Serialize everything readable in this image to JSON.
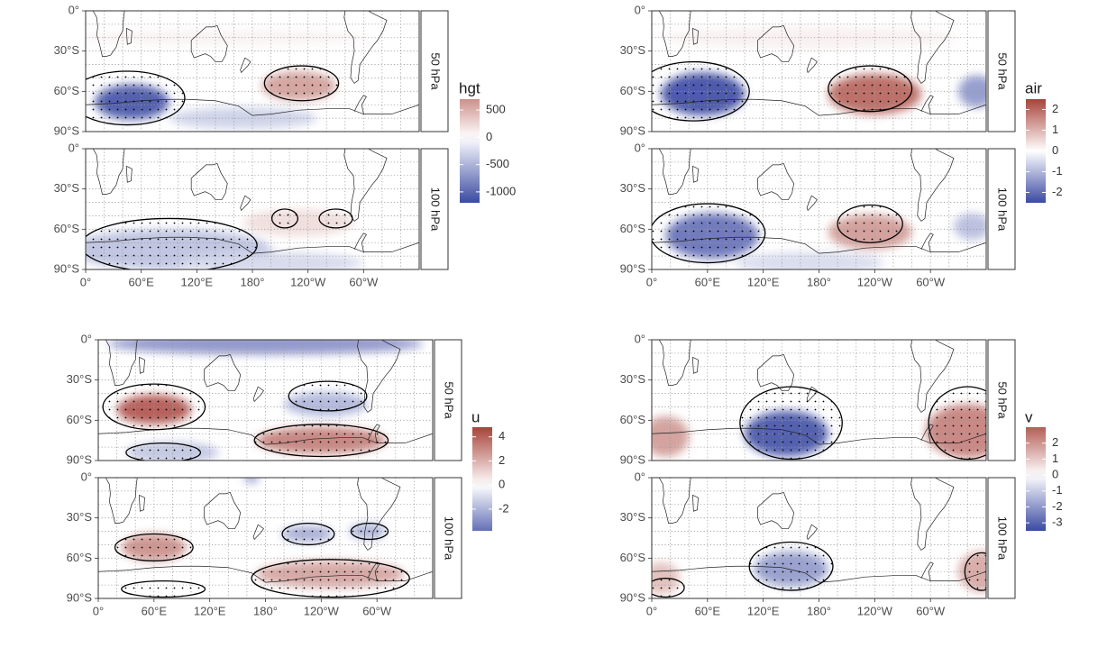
{
  "colors": {
    "negative": "#3b4aa3",
    "neutral": "#ffffff",
    "positive": "#a8433a",
    "contour": "#000000",
    "axis_text": "#4d4d4d",
    "strip_border": "#333333",
    "grid": "#9a9a9a"
  },
  "chart_data": [
    {
      "type": "heatmap",
      "variable": "hgt",
      "legend_title": "hgt",
      "legend_ticks": [
        500,
        0,
        -500,
        -1000
      ],
      "legend_tick_labels": [
        "500",
        "0",
        "-500",
        "-1000"
      ],
      "legend_range": [
        -1200,
        700
      ],
      "x_tick_labels": [
        "0°",
        "60°E",
        "120°E",
        "180°",
        "120°W",
        "60°W"
      ],
      "y_tick_labels": [
        "0°",
        "30°S",
        "60°S",
        "90°S"
      ],
      "panels": [
        {
          "level": "50 hPa",
          "anomalies": [
            {
              "lon": 50,
              "lat": -68,
              "rlon": 40,
              "rlat": 13,
              "value": -1100
            },
            {
              "lon": 230,
              "lat": -56,
              "rlon": 40,
              "rlat": 11,
              "value": 600
            },
            {
              "lon": 170,
              "lat": -80,
              "rlon": 80,
              "rlat": 8,
              "value": -300
            },
            {
              "lon": 150,
              "lat": -20,
              "rlon": 160,
              "rlat": 6,
              "value": 80
            }
          ],
          "significant_regions": [
            {
              "lon": 45,
              "lat": -65,
              "rlon": 62,
              "rlat": 20
            },
            {
              "lon": 233,
              "lat": -54,
              "rlon": 40,
              "rlat": 13
            }
          ]
        },
        {
          "level": "100 hPa",
          "anomalies": [
            {
              "lon": 90,
              "lat": -75,
              "rlon": 110,
              "rlat": 15,
              "value": -400
            },
            {
              "lon": 230,
              "lat": -55,
              "rlon": 60,
              "rlat": 10,
              "value": 220
            },
            {
              "lon": 200,
              "lat": -85,
              "rlon": 100,
              "rlat": 8,
              "value": -250
            }
          ],
          "significant_regions": [
            {
              "lon": 90,
              "lat": -72,
              "rlon": 95,
              "rlat": 20
            },
            {
              "lon": 215,
              "lat": -52,
              "rlon": 14,
              "rlat": 7
            },
            {
              "lon": 270,
              "lat": -52,
              "rlon": 18,
              "rlat": 7
            }
          ]
        }
      ]
    },
    {
      "type": "heatmap",
      "variable": "air",
      "legend_title": "air",
      "legend_ticks": [
        2,
        1,
        0,
        -1,
        -2
      ],
      "legend_tick_labels": [
        "2",
        "1",
        "0",
        "-1",
        "-2"
      ],
      "legend_range": [
        -2.5,
        2.5
      ],
      "x_tick_labels": [
        "0°",
        "60°E",
        "120°E",
        "180°",
        "120°W",
        "60°W"
      ],
      "y_tick_labels": [
        "0°",
        "30°S",
        "60°S",
        "90°S"
      ],
      "panels": [
        {
          "level": "50 hPa",
          "anomalies": [
            {
              "lon": 55,
              "lat": -62,
              "rlon": 45,
              "rlat": 16,
              "value": -2.4
            },
            {
              "lon": 240,
              "lat": -62,
              "rlon": 50,
              "rlat": 15,
              "value": 2.0
            },
            {
              "lon": 350,
              "lat": -60,
              "rlon": 20,
              "rlat": 12,
              "value": -1.4
            },
            {
              "lon": 170,
              "lat": -20,
              "rlon": 160,
              "rlat": 8,
              "value": 0.2
            }
          ],
          "significant_regions": [
            {
              "lon": 45,
              "lat": -60,
              "rlon": 60,
              "rlat": 22
            },
            {
              "lon": 235,
              "lat": -58,
              "rlon": 45,
              "rlat": 17
            }
          ]
        },
        {
          "level": "100 hPa",
          "anomalies": [
            {
              "lon": 65,
              "lat": -65,
              "rlon": 50,
              "rlat": 17,
              "value": -1.9
            },
            {
              "lon": 235,
              "lat": -62,
              "rlon": 45,
              "rlat": 13,
              "value": 1.3
            },
            {
              "lon": 170,
              "lat": -85,
              "rlon": 80,
              "rlat": 8,
              "value": -0.5
            },
            {
              "lon": 345,
              "lat": -58,
              "rlon": 20,
              "rlat": 10,
              "value": -0.9
            }
          ],
          "significant_regions": [
            {
              "lon": 60,
              "lat": -63,
              "rlon": 62,
              "rlat": 22
            },
            {
              "lon": 235,
              "lat": -56,
              "rlon": 35,
              "rlat": 14
            }
          ]
        }
      ]
    },
    {
      "type": "heatmap",
      "variable": "u",
      "legend_title": "u",
      "legend_ticks": [
        4,
        2,
        0,
        -2
      ],
      "legend_tick_labels": [
        "4",
        "2",
        "0",
        "-2"
      ],
      "legend_range": [
        -3.8,
        4.8
      ],
      "x_tick_labels": [
        "0°",
        "60°E",
        "120°E",
        "180°",
        "120°W",
        "60°W"
      ],
      "y_tick_labels": [
        "0°",
        "30°S",
        "60°S",
        "90°S"
      ],
      "panels": [
        {
          "level": "50 hPa",
          "anomalies": [
            {
              "lon": 180,
              "lat": -3,
              "rlon": 170,
              "rlat": 8,
              "value": -2.8
            },
            {
              "lon": 60,
              "lat": -52,
              "rlon": 40,
              "rlat": 11,
              "value": 4.2
            },
            {
              "lon": 245,
              "lat": -48,
              "rlon": 45,
              "rlat": 9,
              "value": -1.9
            },
            {
              "lon": 240,
              "lat": -75,
              "rlon": 70,
              "rlat": 10,
              "value": 3.2
            },
            {
              "lon": 80,
              "lat": -84,
              "rlon": 50,
              "rlat": 8,
              "value": -1.5
            }
          ],
          "significant_regions": [
            {
              "lon": 60,
              "lat": -50,
              "rlon": 55,
              "rlat": 17
            },
            {
              "lon": 247,
              "lat": -42,
              "rlon": 42,
              "rlat": 11
            },
            {
              "lon": 240,
              "lat": -75,
              "rlon": 72,
              "rlat": 12
            },
            {
              "lon": 70,
              "lat": -84,
              "rlon": 40,
              "rlat": 7
            }
          ]
        },
        {
          "level": "100 hPa",
          "anomalies": [
            {
              "lon": 60,
              "lat": -52,
              "rlon": 35,
              "rlat": 10,
              "value": 2.8
            },
            {
              "lon": 225,
              "lat": -42,
              "rlon": 28,
              "rlat": 6,
              "value": -2.2
            },
            {
              "lon": 290,
              "lat": -40,
              "rlon": 20,
              "rlat": 6,
              "value": -2.0
            },
            {
              "lon": 250,
              "lat": -72,
              "rlon": 80,
              "rlat": 10,
              "value": 2.3
            },
            {
              "lon": 165,
              "lat": 0,
              "rlon": 8,
              "rlat": 4,
              "value": -2.5
            }
          ],
          "significant_regions": [
            {
              "lon": 60,
              "lat": -52,
              "rlon": 42,
              "rlat": 10
            },
            {
              "lon": 226,
              "lat": -42,
              "rlon": 28,
              "rlat": 8
            },
            {
              "lon": 292,
              "lat": -40,
              "rlon": 20,
              "rlat": 6
            },
            {
              "lon": 250,
              "lat": -75,
              "rlon": 85,
              "rlat": 14
            },
            {
              "lon": 70,
              "lat": -83,
              "rlon": 45,
              "rlat": 6
            }
          ]
        }
      ]
    },
    {
      "type": "heatmap",
      "variable": "v",
      "legend_title": "v",
      "legend_ticks": [
        2,
        1,
        0,
        -1,
        -2,
        -3
      ],
      "legend_tick_labels": [
        "2",
        "1",
        "0",
        "-1",
        "-2",
        "-3"
      ],
      "legend_range": [
        -3.5,
        3
      ],
      "x_tick_labels": [
        "0°",
        "60°E",
        "120°E",
        "180°",
        "120°W",
        "60°W"
      ],
      "y_tick_labels": [
        "0°",
        "30°S",
        "60°S",
        "90°S"
      ],
      "panels": [
        {
          "level": "50 hPa",
          "anomalies": [
            {
              "lon": 145,
              "lat": -70,
              "rlon": 45,
              "rlat": 17,
              "value": -3.2
            },
            {
              "lon": 340,
              "lat": -68,
              "rlon": 45,
              "rlat": 20,
              "value": 2.3
            },
            {
              "lon": 15,
              "lat": -72,
              "rlon": 25,
              "rlat": 15,
              "value": 1.8
            }
          ],
          "significant_regions": [
            {
              "lon": 150,
              "lat": -62,
              "rlon": 55,
              "rlat": 27
            },
            {
              "lon": 340,
              "lat": -62,
              "rlon": 42,
              "rlat": 27
            }
          ]
        },
        {
          "level": "100 hPa",
          "anomalies": [
            {
              "lon": 150,
              "lat": -68,
              "rlon": 40,
              "rlat": 13,
              "value": -1.9
            },
            {
              "lon": 355,
              "lat": -70,
              "rlon": 25,
              "rlat": 15,
              "value": 1.6
            },
            {
              "lon": 10,
              "lat": -75,
              "rlon": 20,
              "rlat": 12,
              "value": 1.2
            }
          ],
          "significant_regions": [
            {
              "lon": 150,
              "lat": -66,
              "rlon": 45,
              "rlat": 18
            },
            {
              "lon": 355,
              "lat": -70,
              "rlon": 18,
              "rlat": 14
            },
            {
              "lon": 15,
              "lat": -82,
              "rlon": 20,
              "rlat": 7
            }
          ]
        }
      ]
    }
  ]
}
